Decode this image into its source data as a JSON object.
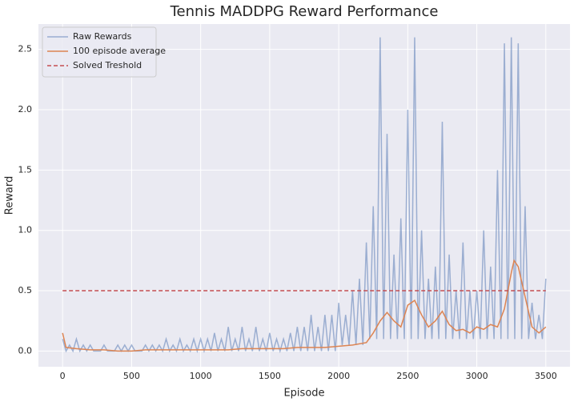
{
  "chart_data": {
    "type": "line",
    "title": "Tennis MADDPG Reward Performance",
    "xlabel": "Episode",
    "ylabel": "Reward",
    "xlim": [
      -175,
      3675
    ],
    "ylim": [
      -0.13,
      2.71
    ],
    "xticks": [
      0,
      500,
      1000,
      1500,
      2000,
      2500,
      3000,
      3500
    ],
    "yticks": [
      {
        "value": 0,
        "label": "0.0"
      },
      0.5,
      {
        "value": 1,
        "label": "1.0"
      },
      1.5,
      {
        "value": 2,
        "label": "2.0"
      },
      2.5
    ],
    "grid": true,
    "legend": "upper left",
    "series": [
      {
        "name": "Raw Rewards",
        "color": "#4c72b0",
        "opacity": 0.5,
        "linestyle": "-",
        "x": [
          0,
          25,
          50,
          75,
          100,
          125,
          150,
          175,
          200,
          225,
          250,
          275,
          300,
          325,
          350,
          375,
          400,
          425,
          450,
          475,
          500,
          525,
          550,
          575,
          600,
          625,
          650,
          675,
          700,
          725,
          750,
          775,
          800,
          825,
          850,
          875,
          900,
          925,
          950,
          975,
          1000,
          1025,
          1050,
          1075,
          1100,
          1125,
          1150,
          1175,
          1200,
          1225,
          1250,
          1275,
          1300,
          1325,
          1350,
          1375,
          1400,
          1425,
          1450,
          1475,
          1500,
          1525,
          1550,
          1575,
          1600,
          1625,
          1650,
          1675,
          1700,
          1725,
          1750,
          1775,
          1800,
          1825,
          1850,
          1875,
          1900,
          1925,
          1950,
          1975,
          2000,
          2025,
          2050,
          2075,
          2100,
          2125,
          2150,
          2175,
          2200,
          2225,
          2250,
          2275,
          2300,
          2325,
          2350,
          2375,
          2400,
          2425,
          2450,
          2475,
          2500,
          2525,
          2550,
          2575,
          2600,
          2625,
          2650,
          2675,
          2700,
          2725,
          2750,
          2775,
          2800,
          2825,
          2850,
          2875,
          2900,
          2925,
          2950,
          2975,
          3000,
          3025,
          3050,
          3075,
          3100,
          3125,
          3150,
          3175,
          3200,
          3225,
          3250,
          3275,
          3300,
          3325,
          3350,
          3375,
          3400,
          3425,
          3450,
          3475,
          3500
        ],
        "values": [
          0.1,
          0,
          0.05,
          0,
          0.1,
          0,
          0.05,
          0,
          0.05,
          0,
          0,
          0,
          0.05,
          0,
          0,
          0,
          0.05,
          0,
          0.05,
          0,
          0.05,
          0,
          0,
          0,
          0.05,
          0,
          0.05,
          0,
          0.05,
          0,
          0.1,
          0,
          0.05,
          0,
          0.1,
          0,
          0.05,
          0,
          0.1,
          0,
          0.1,
          0,
          0.1,
          0,
          0.15,
          0,
          0.1,
          0,
          0.2,
          0,
          0.1,
          0,
          0.2,
          0,
          0.1,
          0,
          0.2,
          0,
          0.1,
          0,
          0.15,
          0,
          0.1,
          0,
          0.1,
          0,
          0.15,
          0,
          0.2,
          0,
          0.2,
          0,
          0.3,
          0,
          0.2,
          0,
          0.3,
          0,
          0.3,
          0,
          0.4,
          0.05,
          0.3,
          0.05,
          0.5,
          0.05,
          0.6,
          0.05,
          0.9,
          0.1,
          1.2,
          0.1,
          2.6,
          0.1,
          1.8,
          0.1,
          0.8,
          0.1,
          1.1,
          0.1,
          2.0,
          0.1,
          2.6,
          0.1,
          1.0,
          0.1,
          0.6,
          0.1,
          0.7,
          0.1,
          1.9,
          0.1,
          0.8,
          0.1,
          0.5,
          0.1,
          0.9,
          0.1,
          0.5,
          0.1,
          0.5,
          0.1,
          1.0,
          0.1,
          0.7,
          0.1,
          1.5,
          0.1,
          2.55,
          0.1,
          2.6,
          0.1,
          2.55,
          0.1,
          1.2,
          0.1,
          0.4,
          0.1,
          0.3,
          0.1,
          0.6
        ]
      },
      {
        "name": "100 episode average",
        "color": "#dd8452",
        "opacity": 1,
        "linestyle": "-",
        "x": [
          0,
          25,
          100,
          200,
          300,
          400,
          500,
          600,
          700,
          800,
          900,
          1000,
          1100,
          1200,
          1300,
          1400,
          1500,
          1600,
          1700,
          1800,
          1900,
          2000,
          2100,
          2200,
          2250,
          2300,
          2350,
          2400,
          2450,
          2500,
          2550,
          2600,
          2650,
          2700,
          2750,
          2800,
          2850,
          2900,
          2950,
          3000,
          3050,
          3100,
          3150,
          3200,
          3250,
          3270,
          3300,
          3350,
          3400,
          3450,
          3500
        ],
        "values": [
          0.15,
          0.03,
          0.02,
          0.01,
          0.01,
          0,
          0,
          0.01,
          0.01,
          0.01,
          0.01,
          0.01,
          0.01,
          0.01,
          0.02,
          0.02,
          0.02,
          0.02,
          0.03,
          0.03,
          0.03,
          0.04,
          0.05,
          0.07,
          0.15,
          0.25,
          0.32,
          0.25,
          0.2,
          0.38,
          0.42,
          0.3,
          0.2,
          0.25,
          0.33,
          0.22,
          0.17,
          0.18,
          0.15,
          0.2,
          0.18,
          0.22,
          0.2,
          0.35,
          0.65,
          0.75,
          0.7,
          0.45,
          0.2,
          0.15,
          0.2
        ]
      },
      {
        "name": "Solved Treshold",
        "color": "#c44e52",
        "opacity": 1,
        "linestyle": "--",
        "x": [
          0,
          3500
        ],
        "values": [
          0.5,
          0.5
        ]
      }
    ]
  }
}
